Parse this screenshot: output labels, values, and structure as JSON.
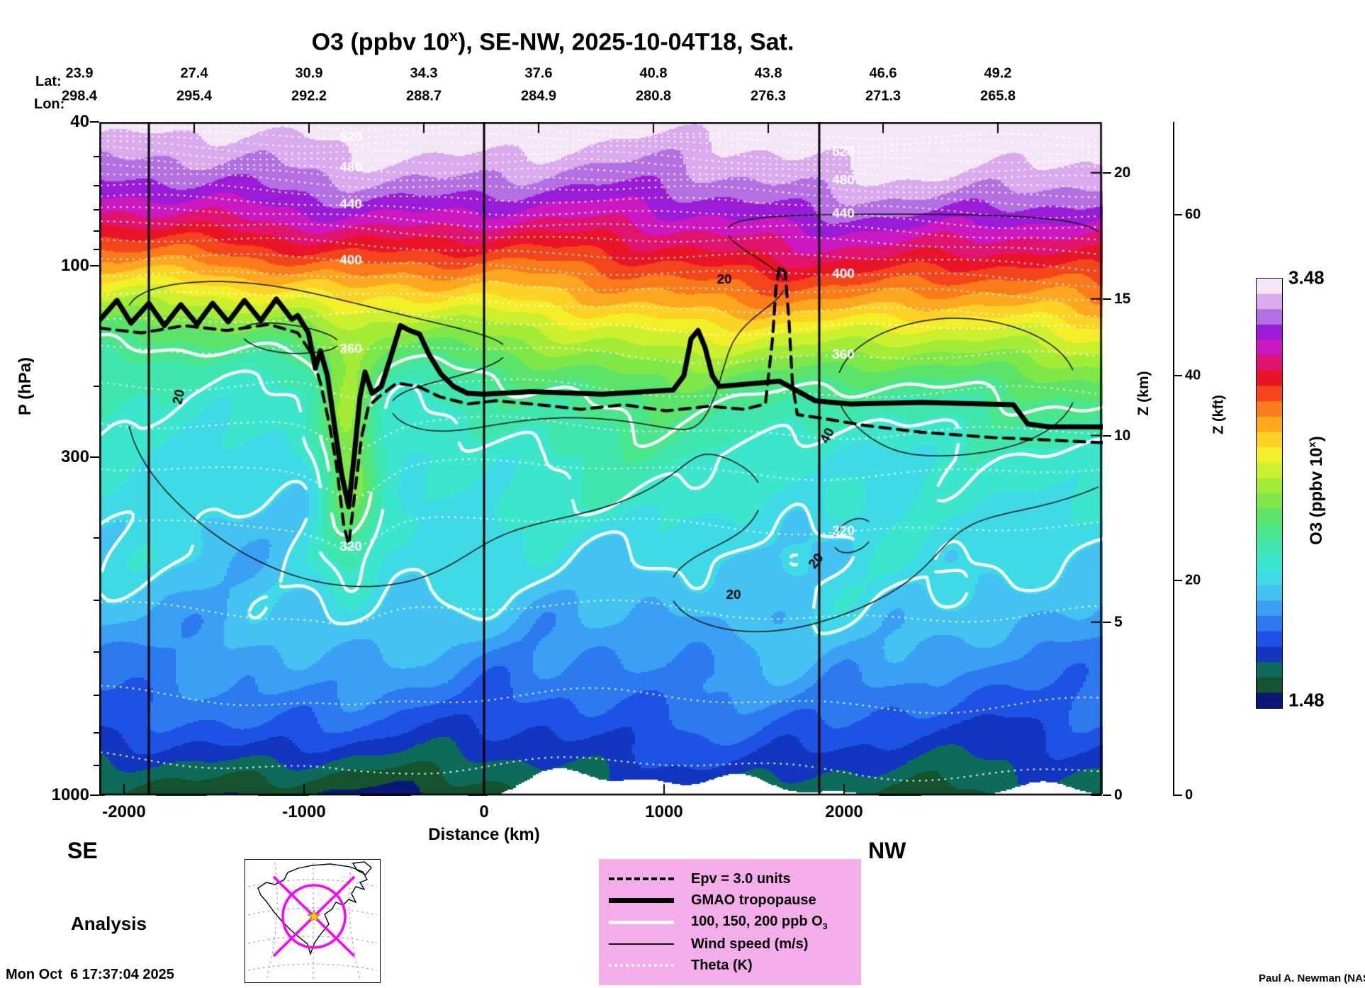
{
  "page": {
    "bg": "#ffffff"
  },
  "title": {
    "prefix": "O3 (ppbv 10",
    "sup": "x",
    "suffix": "), SE-NW, 2025-10-04T18, Sat."
  },
  "top_axis": {
    "lat_label": "Lat:",
    "lon_label": "Lon:",
    "columns": [
      {
        "lat": "23.9",
        "lon": "298.4"
      },
      {
        "lat": "27.4",
        "lon": "295.4"
      },
      {
        "lat": "30.9",
        "lon": "292.2"
      },
      {
        "lat": "34.3",
        "lon": "288.7"
      },
      {
        "lat": "37.6",
        "lon": "284.9"
      },
      {
        "lat": "40.8",
        "lon": "280.8"
      },
      {
        "lat": "43.8",
        "lon": "276.3"
      },
      {
        "lat": "46.6",
        "lon": "271.3"
      },
      {
        "lat": "49.2",
        "lon": "265.8"
      }
    ]
  },
  "axes": {
    "pressure": {
      "label": "P (hPa)",
      "ticks": [
        "40",
        "100",
        "300",
        "1000"
      ],
      "values": [
        40,
        100,
        300,
        1000
      ]
    },
    "distance": {
      "label": "Distance (km)",
      "ticks": [
        "-2000",
        "-1000",
        "0",
        "1000",
        "2000"
      ],
      "values": [
        -2000,
        -1000,
        0,
        1000,
        2000
      ]
    },
    "z_km": {
      "label": "Z (km)",
      "ticks": [
        "20",
        "15",
        "10",
        "5",
        "0"
      ],
      "values": [
        20,
        15,
        10,
        5,
        0
      ]
    },
    "z_kft": {
      "label": "Z (kft)",
      "ticks": [
        "60",
        "40",
        "20",
        "0"
      ],
      "values": [
        60,
        40,
        20,
        0
      ]
    }
  },
  "corners": {
    "se": "SE",
    "nw": "NW"
  },
  "analysis_label": "Analysis",
  "colorbar": {
    "max_label": "3.48",
    "min_label": "1.48",
    "min": 1.48,
    "max": 3.48,
    "label_prefix": "O3 (ppbv 10",
    "label_sup": "x",
    "label_suffix": ")",
    "colors": [
      "#0a1778",
      "#14532d",
      "#0e6b5c",
      "#1236c0",
      "#1e52e4",
      "#2c79f0",
      "#3b9ff4",
      "#44c3f2",
      "#3edbe6",
      "#3ce6cc",
      "#3fe6ad",
      "#49e68c",
      "#5ce46a",
      "#7fe748",
      "#a4ec37",
      "#cdf02e",
      "#f2ee28",
      "#fdd226",
      "#fda61f",
      "#fb7a1a",
      "#f4441c",
      "#ea1428",
      "#e0146e",
      "#cb18c0",
      "#9a1bd8",
      "#b470e2",
      "#d9aaee",
      "#f5e6f7"
    ]
  },
  "legend": {
    "bg": "#f3aee9",
    "items": [
      {
        "symbol": "dashed-black",
        "label": "Epv = 3.0 units"
      },
      {
        "symbol": "thick-black",
        "label": "GMAO tropopause"
      },
      {
        "symbol": "white-solid",
        "label": "100, 150, 200 ppb O",
        "sub": "3"
      },
      {
        "symbol": "thin-black",
        "label": "Wind speed (m/s)"
      },
      {
        "symbol": "dotted-white",
        "label": "Theta (K)"
      }
    ]
  },
  "footer": {
    "timestamp": "Mon Oct  6 17:37:04 2025",
    "credit": "Paul A. Newman (NASA"
  },
  "chart_data": {
    "type": "heatmap",
    "field": "O3 (ppbv 10^x) vertical cross-section along SE-NW transect",
    "valid_time": "2025-10-04T18",
    "x_range_km": [
      -2138,
      3433
    ],
    "pressure_range_hPa": [
      40,
      1000
    ],
    "colorbar_range": [
      1.48,
      3.48
    ],
    "transect_lat": [
      23.9,
      27.4,
      30.9,
      34.3,
      37.6,
      40.8,
      43.8,
      46.6,
      49.2
    ],
    "transect_lon": [
      298.4,
      295.4,
      292.2,
      288.7,
      284.9,
      280.8,
      276.3,
      271.3,
      265.8
    ],
    "o3_profile": {
      "pressure_hPa": [
        40,
        43,
        52,
        60,
        67,
        75,
        82,
        91,
        102,
        113,
        123,
        133,
        144,
        156,
        170,
        188,
        212,
        250,
        300,
        372,
        478,
        571,
        664,
        753,
        855,
        946,
        1000
      ],
      "exponent": [
        3.48,
        3.44,
        3.36,
        3.29,
        3.22,
        3.15,
        3.08,
        3.01,
        2.92,
        2.83,
        2.76,
        2.68,
        2.6,
        2.53,
        2.45,
        2.36,
        2.28,
        2.2,
        2.13,
        2.08,
        2.04,
        1.97,
        1.9,
        1.83,
        1.75,
        1.68,
        1.64
      ]
    },
    "tropopause": {
      "distance_km": [
        -2138,
        -2039,
        -1961,
        -1862,
        -1776,
        -1685,
        -1594,
        -1508,
        -1421,
        -1331,
        -1240,
        -1154,
        -1067,
        -1035,
        -976,
        -937,
        -909,
        -870,
        -831,
        -791,
        -752,
        -720,
        -689,
        -661,
        -622,
        -571,
        -524,
        -465,
        -413,
        -358,
        -307,
        -240,
        -169,
        -91,
        0,
        264,
        657,
        1051,
        1110,
        1150,
        1189,
        1228,
        1268,
        1307,
        1642,
        1839,
        2035,
        2429,
        2941,
        3020,
        3138,
        3433
      ],
      "pressure_hPa": [
        137,
        122,
        139,
        124,
        141,
        125,
        140,
        124,
        138,
        122,
        137,
        121,
        136,
        133,
        147,
        180,
        163,
        188,
        250,
        319,
        358,
        294,
        212,
        184,
        208,
        200,
        172,
        141,
        145,
        148,
        166,
        186,
        200,
        208,
        209,
        206,
        209,
        204,
        188,
        152,
        145,
        160,
        188,
        200,
        194,
        217,
        221,
        219,
        222,
        248,
        252,
        252
      ]
    },
    "epv_contour": {
      "distance_km": [
        -2138,
        -1902,
        -1665,
        -1429,
        -1193,
        -1035,
        -957,
        -909,
        -858,
        -819,
        -780,
        -752,
        -720,
        -681,
        -642,
        -583,
        -484,
        -366,
        -248,
        -91,
        67,
        303,
        539,
        776,
        1012,
        1248,
        1445,
        1563,
        1602,
        1622,
        1642,
        1673,
        1693,
        1713,
        1740,
        1878,
        2114,
        2429,
        2823,
        3217,
        3433
      ],
      "pressure_hPa": [
        143,
        147,
        141,
        145,
        140,
        147,
        166,
        196,
        250,
        310,
        381,
        410,
        345,
        268,
        224,
        212,
        196,
        200,
        212,
        221,
        217,
        222,
        228,
        222,
        230,
        224,
        228,
        221,
        153,
        113,
        100,
        104,
        135,
        196,
        235,
        240,
        250,
        260,
        268,
        273,
        276
      ]
    },
    "theta_labeled_K": [
      320,
      360,
      400,
      440,
      480,
      520
    ],
    "theta_labeled_pressure_hPa": [
      379,
      163,
      100,
      70,
      54,
      44
    ],
    "wind_contours_ms": [
      20,
      40
    ],
    "o3_white_contours_ppb": [
      100,
      150,
      200
    ],
    "epv_level_units": 3.0,
    "vertical_marker_lines_km": [
      -1862,
      0,
      1862
    ]
  }
}
